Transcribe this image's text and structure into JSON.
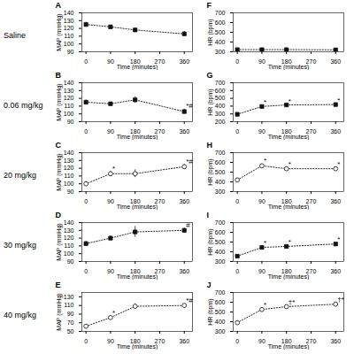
{
  "chart_data": [
    {
      "type": "line",
      "title": "A",
      "subtitle": "Saline",
      "xlabel": "Time (minutes)",
      "ylabel": "MAP (mmHg)",
      "x": [
        0,
        90,
        180,
        360
      ],
      "series": [
        {
          "values": [
            125,
            122,
            118,
            113
          ],
          "err": [
            3,
            2,
            2,
            3
          ],
          "color": "#111111",
          "marker": "square",
          "line_style": "dotted"
        }
      ],
      "xlim": [
        -15,
        390
      ],
      "xticks": [
        0,
        90,
        180,
        270,
        360
      ],
      "ylim": [
        90,
        140
      ],
      "yticks": [
        90,
        100,
        110,
        120,
        130,
        140
      ],
      "grid": false,
      "annotations": []
    },
    {
      "type": "line",
      "title": "F",
      "xlabel": "Time (minutes)",
      "ylabel": "HR (bpm)",
      "x": [
        0,
        90,
        180,
        360
      ],
      "series": [
        {
          "values": [
            322,
            322,
            322,
            320
          ],
          "err": [
            5,
            4,
            4,
            4
          ],
          "color": "#111111",
          "marker": "square",
          "line_style": "dotted"
        }
      ],
      "xlim": [
        -15,
        390
      ],
      "xticks": [
        0,
        90,
        180,
        270,
        360
      ],
      "ylim": [
        300,
        700
      ],
      "yticks": [
        300,
        400,
        500,
        600,
        700
      ],
      "grid": false,
      "annotations": []
    },
    {
      "type": "line",
      "title": "B",
      "subtitle": "0.06 mg/kg",
      "xlabel": "Time (minutes)",
      "ylabel": "MAP (mmHg)",
      "x": [
        0,
        90,
        180,
        360
      ],
      "series": [
        {
          "values": [
            115,
            113,
            118,
            103
          ],
          "err": [
            3,
            2,
            4,
            3
          ],
          "color": "#111111",
          "marker": "square",
          "line_style": "dotted"
        }
      ],
      "xlim": [
        -15,
        390
      ],
      "xticks": [
        0,
        90,
        180,
        270,
        360
      ],
      "ylim": [
        90,
        140
      ],
      "yticks": [
        90,
        100,
        110,
        120,
        130,
        140
      ],
      "grid": false,
      "annotations": [
        {
          "x": 360,
          "text": "*#"
        }
      ]
    },
    {
      "type": "line",
      "title": "G",
      "xlabel": "Time (minutes)",
      "ylabel": "HR (bpm)",
      "x": [
        0,
        90,
        180,
        360
      ],
      "series": [
        {
          "values": [
            295,
            395,
            415,
            420
          ],
          "err": [
            10,
            12,
            10,
            12
          ],
          "color": "#111111",
          "marker": "square",
          "line_style": "dotted"
        }
      ],
      "xlim": [
        -15,
        390
      ],
      "xticks": [
        0,
        90,
        180,
        270,
        360
      ],
      "ylim": [
        200,
        700
      ],
      "yticks": [
        200,
        300,
        400,
        500,
        600,
        700
      ],
      "grid": false,
      "annotations": [
        {
          "x": 90,
          "text": "*"
        },
        {
          "x": 180,
          "text": "*"
        },
        {
          "x": 360,
          "text": "*"
        }
      ]
    },
    {
      "type": "line",
      "title": "C",
      "subtitle": "20 mg/kg",
      "xlabel": "Time (minutes)",
      "ylabel": "MAP (mmHg)",
      "x": [
        0,
        90,
        180,
        360
      ],
      "series": [
        {
          "values": [
            100,
            113,
            113,
            122
          ],
          "err": [
            3,
            3,
            5,
            3
          ],
          "color": "#111111",
          "marker": "open_circle",
          "line_style": "dotted"
        }
      ],
      "xlim": [
        -15,
        390
      ],
      "xticks": [
        0,
        90,
        180,
        270,
        360
      ],
      "ylim": [
        90,
        140
      ],
      "yticks": [
        90,
        100,
        110,
        120,
        130,
        140
      ],
      "grid": false,
      "annotations": [
        {
          "x": 90,
          "text": "*"
        },
        {
          "x": 360,
          "text": "*#"
        }
      ]
    },
    {
      "type": "line",
      "title": "H",
      "xlabel": "Time (minutes)",
      "ylabel": "HR (bpm)",
      "x": [
        0,
        90,
        180,
        360
      ],
      "series": [
        {
          "values": [
            420,
            565,
            535,
            535
          ],
          "err": [
            15,
            18,
            15,
            15
          ],
          "color": "#111111",
          "marker": "open_circle",
          "line_style": "dotted"
        }
      ],
      "xlim": [
        -15,
        390
      ],
      "xticks": [
        0,
        90,
        180,
        270,
        360
      ],
      "ylim": [
        300,
        700
      ],
      "yticks": [
        300,
        400,
        500,
        600,
        700
      ],
      "grid": false,
      "annotations": [
        {
          "x": 90,
          "text": "*"
        },
        {
          "x": 180,
          "text": "*"
        },
        {
          "x": 360,
          "text": "*"
        }
      ]
    },
    {
      "type": "line",
      "title": "D",
      "subtitle": "30 mg/kg",
      "xlabel": "Time (minutes)",
      "ylabel": "MAP (mmHg)",
      "x": [
        0,
        90,
        180,
        360
      ],
      "series": [
        {
          "values": [
            113,
            120,
            128,
            130
          ],
          "err": [
            3,
            3,
            7,
            3
          ],
          "color": "#111111",
          "marker": "square",
          "line_style": "dotted"
        }
      ],
      "xlim": [
        -15,
        390
      ],
      "xticks": [
        0,
        90,
        180,
        270,
        360
      ],
      "ylim": [
        90,
        140
      ],
      "yticks": [
        90,
        100,
        110,
        120,
        130,
        140
      ],
      "grid": false,
      "annotations": [
        {
          "x": 360,
          "text": "#"
        }
      ]
    },
    {
      "type": "line",
      "title": "I",
      "xlabel": "Time (minutes)",
      "ylabel": "HR (bpm)",
      "x": [
        0,
        90,
        180,
        360
      ],
      "series": [
        {
          "values": [
            355,
            445,
            455,
            480
          ],
          "err": [
            12,
            15,
            12,
            12
          ],
          "color": "#111111",
          "marker": "square",
          "line_style": "dotted"
        }
      ],
      "xlim": [
        -15,
        390
      ],
      "xticks": [
        0,
        90,
        180,
        270,
        360
      ],
      "ylim": [
        300,
        700
      ],
      "yticks": [
        300,
        400,
        500,
        600,
        700
      ],
      "grid": false,
      "annotations": [
        {
          "x": 90,
          "text": "*"
        },
        {
          "x": 180,
          "text": "*"
        },
        {
          "x": 360,
          "text": "*"
        }
      ]
    },
    {
      "type": "line",
      "title": "E",
      "subtitle": "40 mg/kg",
      "xlabel": "Time (minutes)",
      "ylabel": "MAP (mmHg)",
      "x": [
        0,
        90,
        180,
        360
      ],
      "series": [
        {
          "values": [
            62,
            82,
            108,
            110
          ],
          "err": [
            3,
            3,
            6,
            4
          ],
          "color": "#111111",
          "marker": "open_circle",
          "line_style": "dotted"
        }
      ],
      "xlim": [
        -15,
        390
      ],
      "xticks": [
        0,
        90,
        180,
        270,
        360
      ],
      "ylim": [
        50,
        140
      ],
      "yticks": [
        50,
        70,
        90,
        110,
        130
      ],
      "grid": false,
      "annotations": [
        {
          "x": 90,
          "text": "*"
        },
        {
          "x": 360,
          "text": "*#"
        }
      ]
    },
    {
      "type": "line",
      "title": "J",
      "xlabel": "Time (minutes)",
      "ylabel": "HR (bpm)",
      "x": [
        0,
        90,
        180,
        360
      ],
      "series": [
        {
          "values": [
            390,
            525,
            555,
            580
          ],
          "err": [
            12,
            18,
            15,
            15
          ],
          "color": "#111111",
          "marker": "open_circle",
          "line_style": "dotted"
        }
      ],
      "xlim": [
        -15,
        390
      ],
      "xticks": [
        0,
        90,
        180,
        270,
        360
      ],
      "ylim": [
        300,
        700
      ],
      "yticks": [
        300,
        400,
        500,
        600,
        700
      ],
      "grid": false,
      "annotations": [
        {
          "x": 90,
          "text": "*"
        },
        {
          "x": 180,
          "text": "†*"
        },
        {
          "x": 360,
          "text": "†*"
        }
      ]
    }
  ]
}
